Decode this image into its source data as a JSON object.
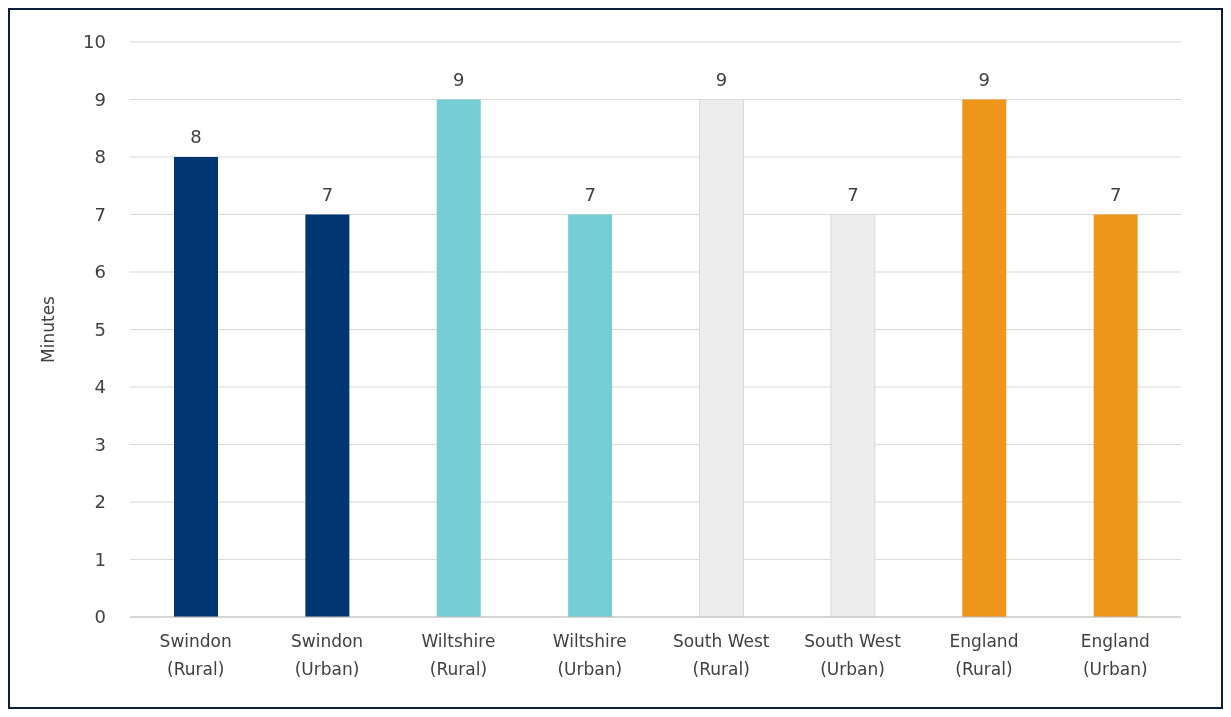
{
  "chart_data": {
    "type": "bar",
    "ylabel": "Minutes",
    "categories": [
      "Swindon (Rural)",
      "Swindon (Urban)",
      "Wiltshire (Rural)",
      "Wiltshire (Urban)",
      "South West (Rural)",
      "South West (Urban)",
      "England (Rural)",
      "England (Urban)"
    ],
    "values": [
      8,
      7,
      9,
      7,
      9,
      7,
      9,
      7
    ],
    "colors": [
      "#003671",
      "#003671",
      "#76cdd6",
      "#76cdd6",
      "#ededed",
      "#ededed",
      "#ee951a",
      "#ee951a"
    ],
    "ylim": [
      0,
      10
    ],
    "yticks": [
      0,
      1,
      2,
      3,
      4,
      5,
      6,
      7,
      8,
      9,
      10
    ],
    "grid": "y",
    "legend": false,
    "data_labels": true
  }
}
